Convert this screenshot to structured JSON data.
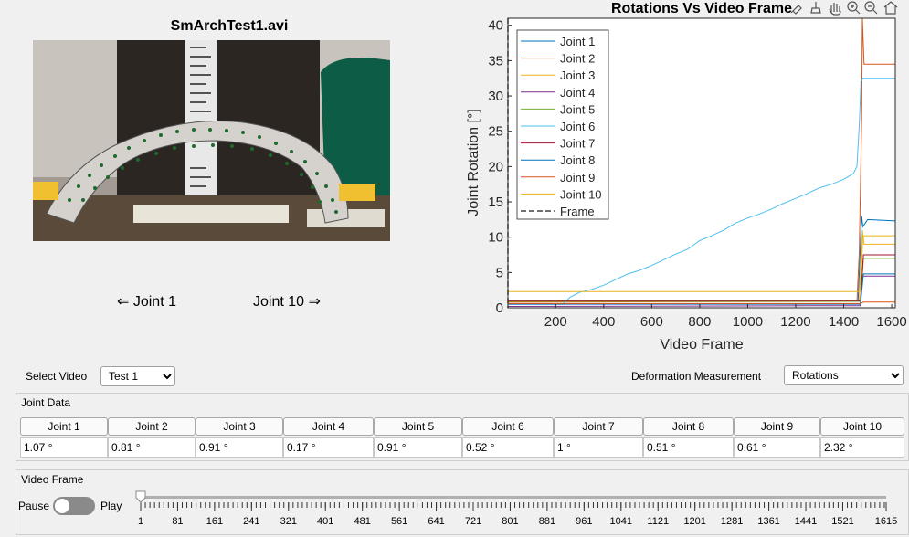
{
  "video": {
    "title": "SmArchTest1.avi",
    "prev_joint_label": "⇐ Joint  1",
    "next_joint_label": "Joint  10 ⇒"
  },
  "controls": {
    "select_video_label": "Select Video",
    "select_video_value": "Test 1",
    "deformation_label": "Deformation Measurement",
    "deformation_value": "Rotations"
  },
  "joint_data": {
    "title": "Joint Data",
    "headers": [
      "Joint 1",
      "Joint 2",
      "Joint 3",
      "Joint 4",
      "Joint 5",
      "Joint 6",
      "Joint 7",
      "Joint 8",
      "Joint 9",
      "Joint 10"
    ],
    "values": [
      "1.07 °",
      "0.81 °",
      "0.91 °",
      "0.17 °",
      "0.91 °",
      "0.52 °",
      "1 °",
      "0.51 °",
      "0.61 °",
      "2.32 °"
    ]
  },
  "video_frame": {
    "title": "Video Frame",
    "pause_label": "Pause",
    "play_label": "Play",
    "slider_min": 1,
    "slider_max": 1615,
    "slider_value": 1,
    "tick_labels": [
      "1",
      "81",
      "161",
      "241",
      "321",
      "401",
      "481",
      "561",
      "641",
      "721",
      "801",
      "881",
      "961",
      "1041",
      "1121",
      "1201",
      "1281",
      "1361",
      "1441",
      "1521",
      "1615"
    ]
  },
  "toolbar_icons": [
    "export-icon",
    "brush-icon",
    "pan-icon",
    "zoom-in-icon",
    "zoom-out-icon",
    "home-icon"
  ],
  "chart_data": {
    "type": "line",
    "title": "Rotations Vs Video Frame",
    "xlabel": "Video Frame",
    "ylabel": "Joint Rotation [°]",
    "xlim": [
      1,
      1615
    ],
    "ylim": [
      0,
      41
    ],
    "xticks": [
      200,
      400,
      600,
      800,
      1000,
      1200,
      1400,
      1600
    ],
    "yticks": [
      0,
      5,
      10,
      15,
      20,
      25,
      30,
      35,
      40
    ],
    "legend_position": "top-left",
    "frame_line": {
      "name": "Frame",
      "x": 1,
      "color": "#404040"
    },
    "series": [
      {
        "name": "Joint 1",
        "color": "#0072bd",
        "x": [
          1,
          1460,
          1475,
          1480,
          1490,
          1500,
          1615
        ],
        "y": [
          1.0,
          1.1,
          13,
          11.5,
          12,
          12.5,
          12.3
        ]
      },
      {
        "name": "Joint 2",
        "color": "#d95319",
        "x": [
          1,
          1455,
          1465,
          1475,
          1478,
          1485,
          1615
        ],
        "y": [
          0.8,
          0.9,
          8,
          27,
          41,
          34.5,
          34.5
        ]
      },
      {
        "name": "Joint 3",
        "color": "#edb120",
        "x": [
          1,
          1465,
          1478,
          1485,
          1615
        ],
        "y": [
          0.9,
          0.9,
          11,
          9,
          9
        ]
      },
      {
        "name": "Joint 4",
        "color": "#7e2f8e",
        "x": [
          1,
          1468,
          1480,
          1615
        ],
        "y": [
          0.2,
          0.3,
          4.5,
          4.5
        ]
      },
      {
        "name": "Joint 5",
        "color": "#77ac30",
        "x": [
          1,
          1470,
          1482,
          1615
        ],
        "y": [
          0.9,
          0.9,
          7,
          7
        ]
      },
      {
        "name": "Joint 6",
        "color": "#4dbeee",
        "x": [
          1,
          230,
          260,
          300,
          350,
          400,
          450,
          500,
          550,
          600,
          650,
          700,
          750,
          800,
          850,
          900,
          950,
          1000,
          1050,
          1100,
          1150,
          1200,
          1250,
          1300,
          1350,
          1400,
          1440,
          1455,
          1465,
          1472,
          1480,
          1615
        ],
        "y": [
          0.5,
          0.5,
          1.5,
          2.2,
          2.6,
          3.2,
          4.0,
          4.8,
          5.3,
          6.0,
          6.8,
          7.6,
          8.3,
          9.5,
          10.2,
          11.0,
          12.0,
          12.7,
          13.3,
          14.0,
          14.8,
          15.5,
          16.2,
          17.0,
          17.5,
          18.2,
          19,
          20,
          26,
          32,
          32.5,
          32.5
        ]
      },
      {
        "name": "Joint 7",
        "color": "#a2142f",
        "x": [
          1,
          1470,
          1482,
          1615
        ],
        "y": [
          1.0,
          1.0,
          7.5,
          7.5
        ]
      },
      {
        "name": "Joint 8",
        "color": "#0072bd",
        "x": [
          1,
          1470,
          1482,
          1615
        ],
        "y": [
          0.5,
          0.5,
          4.8,
          4.8
        ]
      },
      {
        "name": "Joint 9",
        "color": "#d95319",
        "x": [
          1,
          1470,
          1482,
          1615
        ],
        "y": [
          0.6,
          0.6,
          0.8,
          0.8
        ]
      },
      {
        "name": "Joint 10",
        "color": "#edb120",
        "x": [
          1,
          1470,
          1480,
          1615
        ],
        "y": [
          2.3,
          2.3,
          10.2,
          10.2
        ]
      }
    ]
  }
}
